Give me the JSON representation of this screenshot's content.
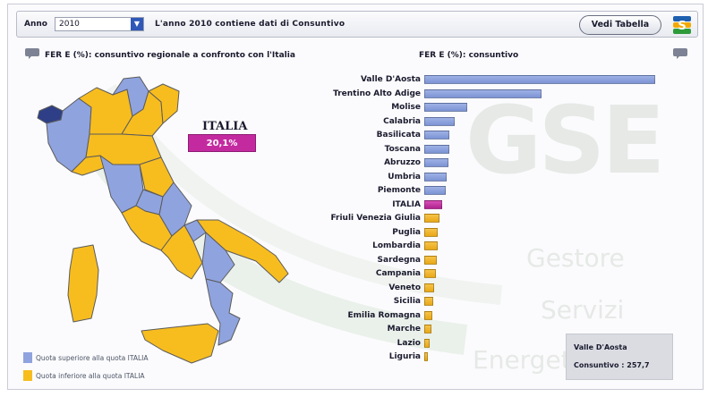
{
  "toolbar": {
    "year_label": "Anno",
    "year_selected": "2010",
    "message": "L'anno 2010 contiene dati di Consuntivo",
    "table_button": "Vedi Tabella"
  },
  "map_panel": {
    "title": "FER E (%): consuntivo regionale a confronto con l'Italia",
    "national_label": "ITALIA",
    "national_value": "20,1%",
    "legend": [
      {
        "text": "Quota superiore alla quota ITALIA",
        "color": "#8fa3df"
      },
      {
        "text": "Quota inferiore alla quota ITALIA",
        "color": "#f7bd1f"
      }
    ]
  },
  "chart_panel": {
    "title": "FER E (%): consuntivo"
  },
  "watermark": [
    "GSE",
    "Gestore",
    "Servizi",
    "Energetici"
  ],
  "tooltip": {
    "region": "Valle D'Aosta",
    "value_text": "Consuntivo : 257,7"
  },
  "colors": {
    "above": "#8fa3df",
    "below": "#f7bd1f",
    "national": "#c42aa0",
    "selected": "#2e3f87"
  },
  "chart_data": {
    "type": "bar",
    "orientation": "horizontal",
    "title": "FER E (%): consuntivo",
    "categories": [
      "Valle D'Aosta",
      "Trentino Alto Adige",
      "Molise",
      "Calabria",
      "Basilicata",
      "Toscana",
      "Abruzzo",
      "Umbria",
      "Piemonte",
      "ITALIA",
      "Friuli Venezia Giulia",
      "Puglia",
      "Lombardia",
      "Sardegna",
      "Campania",
      "Veneto",
      "Sicilia",
      "Emilia Romagna",
      "Marche",
      "Lazio",
      "Liguria"
    ],
    "values": [
      257.7,
      131,
      48,
      34,
      28,
      28,
      27,
      25,
      24,
      20.1,
      17,
      15,
      15,
      14,
      13,
      11,
      10,
      9,
      8,
      6,
      4
    ],
    "groups": [
      "above",
      "above",
      "above",
      "above",
      "above",
      "above",
      "above",
      "above",
      "above",
      "national",
      "below",
      "below",
      "below",
      "below",
      "below",
      "below",
      "below",
      "below",
      "below",
      "below",
      "below"
    ],
    "xlim": [
      0,
      262
    ],
    "grid": false
  }
}
